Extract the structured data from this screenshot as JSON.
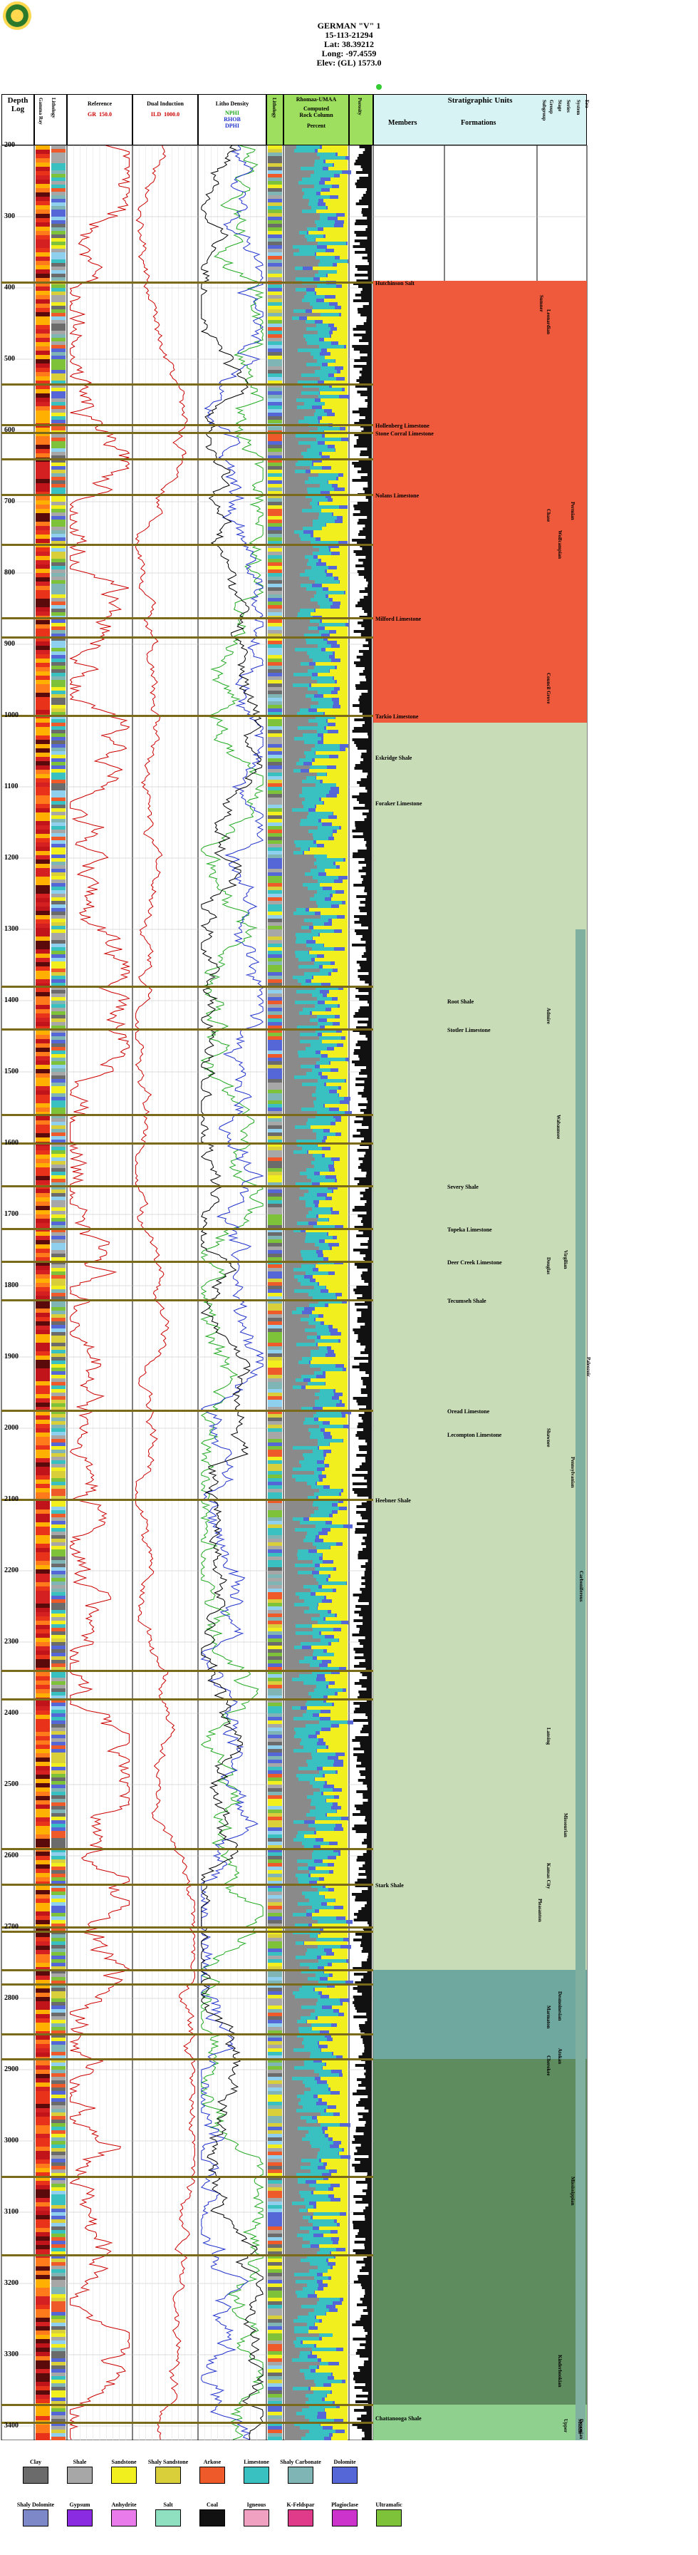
{
  "well": {
    "name": "GERMAN \"V\" 1",
    "api": "15-113-21294",
    "lat": "Lat: 38.39212",
    "long": "Long: -97.4559",
    "elev": "Elev: (GL) 1573.0"
  },
  "headers": {
    "depth": "Depth",
    "log": "Log",
    "gamma_ray": "Gamma Ray",
    "lithology": "Lithology",
    "reference": "Reference",
    "gr": "GR",
    "gr_range": "150.0",
    "dual_induction": "Dual Induction",
    "ild": "ILD",
    "ild_range": "1000.0",
    "litho_density": "Litho Density",
    "nphi": "NPHI",
    "rhob": "RHOB",
    "dphi": "DPHI",
    "lithology2": "Lithology",
    "rhomaa_title": "Rhomaa-UMAA",
    "rhomaa_sub1": "Computed",
    "rhomaa_sub2": "Rock Column",
    "percent": "Percent",
    "porosity": "Porosity",
    "strat_units": "Stratigraphic Units",
    "members": "Members",
    "formations": "Formations"
  },
  "depth_ticks": [
    "200",
    "300",
    "400",
    "500",
    "600",
    "700",
    "800",
    "900",
    "1000",
    "1100",
    "1200",
    "1300",
    "1400",
    "1500",
    "1600",
    "1700",
    "1800",
    "1900",
    "2000",
    "2100",
    "2200",
    "2300",
    "2400",
    "2500",
    "2600",
    "2700",
    "2800",
    "2900",
    "3000",
    "3100",
    "3200",
    "3300",
    "3400"
  ],
  "members": [
    {
      "name": "Hutchinson Salt",
      "depth": 392
    },
    {
      "name": "Hollenberg Limestone",
      "depth": 592
    },
    {
      "name": "Nolans Limestone",
      "depth": 690
    },
    {
      "name": "Stone Corral Limestone",
      "depth": 603
    },
    {
      "name": "Milford Limestone",
      "depth": 863
    },
    {
      "name": "Tarkio Limestone",
      "depth": 1000
    },
    {
      "name": "Eskridge Shale",
      "depth": 1058
    },
    {
      "name": "Foraker Limestone",
      "depth": 1122
    },
    {
      "name": "Heebner Shale",
      "depth": 2100
    },
    {
      "name": "Stark Shale",
      "depth": 2640
    },
    {
      "name": "Chattanooga Shale",
      "depth": 3388
    }
  ],
  "formations": [
    {
      "name": "Root Shale",
      "depth": 1400
    },
    {
      "name": "Stotler Limestone",
      "depth": 1440
    },
    {
      "name": "Severy Shale",
      "depth": 1660
    },
    {
      "name": "Topeka Limestone",
      "depth": 1720
    },
    {
      "name": "Deer Creek Limestone",
      "depth": 1766
    },
    {
      "name": "Tecumseh Shale",
      "depth": 1820
    },
    {
      "name": "Oread Limestone",
      "depth": 1975
    },
    {
      "name": "Lecompton Limestone",
      "depth": 2008
    }
  ],
  "strat_labels": {
    "summit": "Sumner",
    "lower": "Leonardian",
    "chase": "Chase",
    "wolfcampian": "Wolfcampian",
    "council": "Council Grove",
    "permian": "Permian",
    "admire": "Admire",
    "wabaunsee": "Wabaunsee",
    "shawnee": "Shawnee",
    "virgilian": "Virgilian",
    "douglas": "Douglas",
    "lansing": "Lansing",
    "kansas_city": "Kansas City",
    "missourian": "Missourian",
    "pleasanton": "Pleasanton",
    "marmaton": "Marmaton",
    "desmoinesian": "Desmoinesian",
    "cherokee": "Cherokee",
    "atokan": "Atokan",
    "mississippian": "Mississippian",
    "pennsylvanian": "Pennsylvanian",
    "carboniferous": "Carboniferous",
    "paleozoic": "Paleozoic",
    "kinderhookian": "Kinderhookian",
    "devonian": "Devonian",
    "upper": "Upper",
    "middle": "Middle",
    "group": "Group",
    "stage": "Stage",
    "series": "Series",
    "system": "System",
    "era": "Era",
    "subgroup": "Subgroup"
  },
  "legend_row1": [
    {
      "label": "Clay",
      "color": "#6b6b6b"
    },
    {
      "label": "Shale",
      "color": "#a7a7a7"
    },
    {
      "label": "Sandstone",
      "color": "#f2ef1f"
    },
    {
      "label": "Shaly Sandstone",
      "color": "#d8cf3a"
    },
    {
      "label": "Arkose",
      "color": "#ef5a2a"
    },
    {
      "label": "Limestone",
      "color": "#39c1c1"
    },
    {
      "label": "Shaly Carbonate",
      "color": "#7fb5b5"
    },
    {
      "label": "Dolomite",
      "color": "#5566d6"
    }
  ],
  "legend_row2": [
    {
      "label": "Shaly Dolomite",
      "color": "#7d88c9"
    },
    {
      "label": "Gypsum",
      "color": "#8a2be2"
    },
    {
      "label": "Anhydrite",
      "color": "#ea7bea"
    },
    {
      "label": "Salt",
      "color": "#8fe0c0"
    },
    {
      "label": "Coal",
      "color": "#111111"
    },
    {
      "label": "Igneous",
      "color": "#f0a0c0"
    },
    {
      "label": "K-Feldspar",
      "color": "#e03a8a"
    },
    {
      "label": "Plagioclase",
      "color": "#cc33cc"
    },
    {
      "label": "Ultramafic",
      "color": "#7ec23a"
    }
  ],
  "colors": {
    "permian_band": "#f05a3c",
    "penn_band": "#c9dcb8",
    "atokan_band": "#6fa89e",
    "miss_band": "#5e8c5e",
    "dev_band": "#8fd08f",
    "curve_red": "#cc0000",
    "curve_green": "#22aa22",
    "curve_blue": "#2233cc",
    "grid": "#bbbbbb"
  }
}
